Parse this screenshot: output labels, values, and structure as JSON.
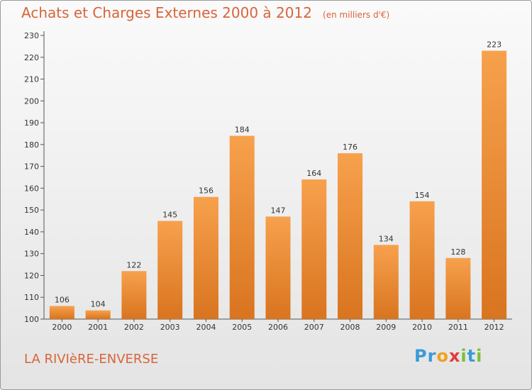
{
  "title": {
    "main": "Achats et Charges Externes 2000 à 2012",
    "unit": "(en milliers d'€)"
  },
  "commune": "LA RIVIèRE-ENVERSE",
  "logo": {
    "letters": [
      "P",
      "r",
      "o",
      "x",
      "i",
      "t",
      "i"
    ],
    "colors": [
      "#3a9bd8",
      "#3a9bd8",
      "#f0a020",
      "#e23b3b",
      "#7cbf3a",
      "#3a9bd8",
      "#7cbf3a"
    ]
  },
  "colors": {
    "bar_light": "#f7a14d",
    "bar_dark": "#d9741f",
    "accent": "#d8643a"
  },
  "chart_data": {
    "type": "bar",
    "title": "Achats et Charges Externes 2000 à 2012",
    "subtitle": "(en milliers d'€)",
    "categories": [
      "2000",
      "2001",
      "2002",
      "2003",
      "2004",
      "2005",
      "2006",
      "2007",
      "2008",
      "2009",
      "2010",
      "2011",
      "2012"
    ],
    "values": [
      106,
      104,
      122,
      145,
      156,
      184,
      147,
      164,
      176,
      134,
      154,
      128,
      223
    ],
    "ylim": [
      100,
      230
    ],
    "yticks": [
      100,
      110,
      120,
      130,
      140,
      150,
      160,
      170,
      180,
      190,
      200,
      210,
      220,
      230
    ],
    "grid": false,
    "legend": "none"
  }
}
